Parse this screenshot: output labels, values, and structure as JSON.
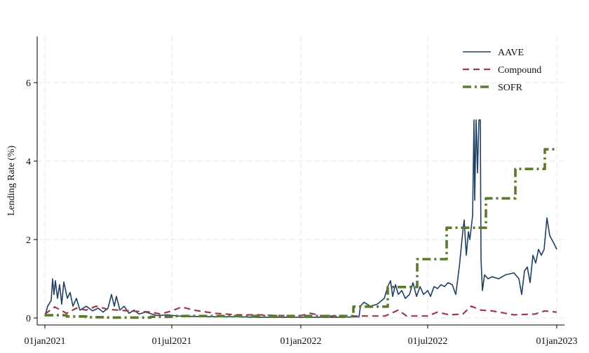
{
  "chart_data": {
    "type": "line",
    "title": "",
    "ylabel": "Lending Rate (%)",
    "xlabel": "",
    "xlim": [
      "2021-01-01",
      "2023-01-01"
    ],
    "ylim": [
      0,
      7.2
    ],
    "x_ticks": [
      {
        "date": "2021-01-01",
        "label": "01jan2021"
      },
      {
        "date": "2021-07-01",
        "label": "01jul2021"
      },
      {
        "date": "2022-01-01",
        "label": "01jan2022"
      },
      {
        "date": "2022-07-01",
        "label": "01jul2022"
      },
      {
        "date": "2023-01-01",
        "label": "01jan2023"
      }
    ],
    "y_ticks": [
      0,
      2,
      4,
      6
    ],
    "grid": true,
    "legend_position": "top-right",
    "series": [
      {
        "name": "AAVE",
        "color": "#1f3f63",
        "style": "solid",
        "points": [
          [
            "2021-01-01",
            0.05
          ],
          [
            "2021-01-05",
            0.3
          ],
          [
            "2021-01-10",
            0.45
          ],
          [
            "2021-01-12",
            1.0
          ],
          [
            "2021-01-14",
            0.6
          ],
          [
            "2021-01-16",
            0.95
          ],
          [
            "2021-01-19",
            0.5
          ],
          [
            "2021-01-22",
            0.85
          ],
          [
            "2021-01-25",
            0.35
          ],
          [
            "2021-01-28",
            0.92
          ],
          [
            "2021-02-02",
            0.5
          ],
          [
            "2021-02-06",
            0.65
          ],
          [
            "2021-02-10",
            0.3
          ],
          [
            "2021-02-15",
            0.5
          ],
          [
            "2021-02-20",
            0.2
          ],
          [
            "2021-03-01",
            0.3
          ],
          [
            "2021-03-10",
            0.18
          ],
          [
            "2021-03-18",
            0.25
          ],
          [
            "2021-03-25",
            0.15
          ],
          [
            "2021-04-01",
            0.25
          ],
          [
            "2021-04-06",
            0.6
          ],
          [
            "2021-04-10",
            0.3
          ],
          [
            "2021-04-13",
            0.55
          ],
          [
            "2021-04-18",
            0.2
          ],
          [
            "2021-04-24",
            0.3
          ],
          [
            "2021-05-01",
            0.12
          ],
          [
            "2021-05-08",
            0.2
          ],
          [
            "2021-05-15",
            0.1
          ],
          [
            "2021-05-25",
            0.15
          ],
          [
            "2021-06-10",
            0.06
          ],
          [
            "2021-06-25",
            0.08
          ],
          [
            "2021-07-10",
            0.05
          ],
          [
            "2021-08-01",
            0.04
          ],
          [
            "2021-09-01",
            0.03
          ],
          [
            "2021-10-01",
            0.03
          ],
          [
            "2021-11-01",
            0.02
          ],
          [
            "2021-12-01",
            0.02
          ],
          [
            "2022-01-01",
            0.02
          ],
          [
            "2022-02-01",
            0.02
          ],
          [
            "2022-03-01",
            0.02
          ],
          [
            "2022-03-25",
            0.03
          ],
          [
            "2022-03-27",
            0.3
          ],
          [
            "2022-04-01",
            0.4
          ],
          [
            "2022-04-10",
            0.3
          ],
          [
            "2022-04-20",
            0.35
          ],
          [
            "2022-04-30",
            0.5
          ],
          [
            "2022-05-05",
            0.8
          ],
          [
            "2022-05-09",
            0.95
          ],
          [
            "2022-05-12",
            0.55
          ],
          [
            "2022-05-16",
            0.85
          ],
          [
            "2022-05-20",
            0.6
          ],
          [
            "2022-05-25",
            0.7
          ],
          [
            "2022-05-30",
            0.5
          ],
          [
            "2022-06-05",
            0.6
          ],
          [
            "2022-06-10",
            0.9
          ],
          [
            "2022-06-15",
            0.55
          ],
          [
            "2022-06-20",
            0.8
          ],
          [
            "2022-06-25",
            0.6
          ],
          [
            "2022-07-01",
            0.7
          ],
          [
            "2022-07-05",
            0.55
          ],
          [
            "2022-07-10",
            0.8
          ],
          [
            "2022-07-15",
            0.75
          ],
          [
            "2022-07-20",
            0.85
          ],
          [
            "2022-07-25",
            0.8
          ],
          [
            "2022-07-30",
            0.9
          ],
          [
            "2022-08-05",
            0.85
          ],
          [
            "2022-08-10",
            0.6
          ],
          [
            "2022-08-15",
            1.3
          ],
          [
            "2022-08-20",
            2.2
          ],
          [
            "2022-08-22",
            2.5
          ],
          [
            "2022-08-25",
            1.6
          ],
          [
            "2022-08-28",
            2.2
          ],
          [
            "2022-08-30",
            2.0
          ],
          [
            "2022-09-01",
            2.3
          ],
          [
            "2022-09-03",
            2.6
          ],
          [
            "2022-09-05",
            5.05
          ],
          [
            "2022-09-06",
            3.0
          ],
          [
            "2022-09-08",
            5.05
          ],
          [
            "2022-09-10",
            3.7
          ],
          [
            "2022-09-12",
            5.05
          ],
          [
            "2022-09-14",
            5.05
          ],
          [
            "2022-09-15",
            1.5
          ],
          [
            "2022-09-17",
            0.7
          ],
          [
            "2022-09-20",
            1.1
          ],
          [
            "2022-09-25",
            1.0
          ],
          [
            "2022-10-01",
            1.05
          ],
          [
            "2022-10-10",
            1.0
          ],
          [
            "2022-10-20",
            1.1
          ],
          [
            "2022-11-01",
            1.15
          ],
          [
            "2022-11-08",
            1.0
          ],
          [
            "2022-11-12",
            0.6
          ],
          [
            "2022-11-16",
            1.2
          ],
          [
            "2022-11-20",
            1.3
          ],
          [
            "2022-11-24",
            0.9
          ],
          [
            "2022-11-28",
            1.6
          ],
          [
            "2022-12-02",
            1.4
          ],
          [
            "2022-12-06",
            1.75
          ],
          [
            "2022-12-10",
            1.6
          ],
          [
            "2022-12-14",
            1.75
          ],
          [
            "2022-12-18",
            2.55
          ],
          [
            "2022-12-22",
            2.1
          ],
          [
            "2022-12-28",
            1.9
          ],
          [
            "2023-01-01",
            1.75
          ]
        ]
      },
      {
        "name": "Compound",
        "color": "#9c3a48",
        "style": "dash",
        "points": [
          [
            "2021-01-01",
            0.1
          ],
          [
            "2021-01-15",
            0.28
          ],
          [
            "2021-02-01",
            0.12
          ],
          [
            "2021-02-15",
            0.25
          ],
          [
            "2021-03-01",
            0.2
          ],
          [
            "2021-03-15",
            0.3
          ],
          [
            "2021-04-01",
            0.22
          ],
          [
            "2021-05-01",
            0.18
          ],
          [
            "2021-06-01",
            0.15
          ],
          [
            "2021-06-15",
            0.1
          ],
          [
            "2021-07-01",
            0.18
          ],
          [
            "2021-07-15",
            0.28
          ],
          [
            "2021-08-01",
            0.2
          ],
          [
            "2021-09-01",
            0.12
          ],
          [
            "2021-10-01",
            0.08
          ],
          [
            "2021-11-01",
            0.08
          ],
          [
            "2021-12-01",
            0.06
          ],
          [
            "2022-01-01",
            0.06
          ],
          [
            "2022-01-15",
            0.12
          ],
          [
            "2022-02-01",
            0.05
          ],
          [
            "2022-03-01",
            0.05
          ],
          [
            "2022-04-01",
            0.05
          ],
          [
            "2022-05-01",
            0.05
          ],
          [
            "2022-05-20",
            0.2
          ],
          [
            "2022-06-01",
            0.05
          ],
          [
            "2022-07-01",
            0.05
          ],
          [
            "2022-07-15",
            0.15
          ],
          [
            "2022-08-01",
            0.08
          ],
          [
            "2022-08-20",
            0.1
          ],
          [
            "2022-09-01",
            0.3
          ],
          [
            "2022-09-15",
            0.2
          ],
          [
            "2022-10-01",
            0.18
          ],
          [
            "2022-11-01",
            0.08
          ],
          [
            "2022-12-01",
            0.1
          ],
          [
            "2022-12-15",
            0.18
          ],
          [
            "2023-01-01",
            0.15
          ]
        ]
      },
      {
        "name": "SOFR",
        "color": "#5a7a2f",
        "style": "dashdot",
        "step": true,
        "points": [
          [
            "2021-01-01",
            0.07
          ],
          [
            "2021-02-01",
            0.04
          ],
          [
            "2021-03-01",
            0.02
          ],
          [
            "2021-04-01",
            0.01
          ],
          [
            "2021-05-01",
            0.01
          ],
          [
            "2021-06-01",
            0.03
          ],
          [
            "2021-07-01",
            0.05
          ],
          [
            "2021-10-01",
            0.05
          ],
          [
            "2022-01-01",
            0.05
          ],
          [
            "2022-03-17",
            0.29
          ],
          [
            "2022-05-05",
            0.79
          ],
          [
            "2022-06-16",
            1.5
          ],
          [
            "2022-07-28",
            2.3
          ],
          [
            "2022-09-22",
            3.05
          ],
          [
            "2022-11-03",
            3.8
          ],
          [
            "2022-12-15",
            4.3
          ],
          [
            "2023-01-01",
            4.3
          ]
        ]
      }
    ]
  }
}
